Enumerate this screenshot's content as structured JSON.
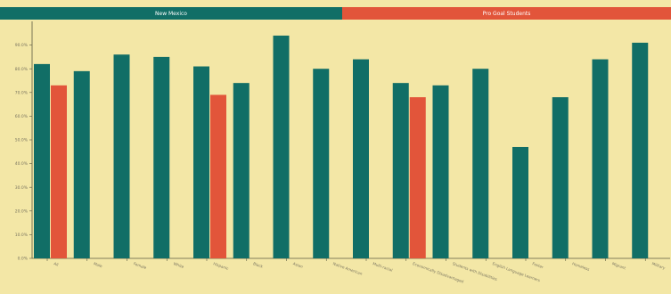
{
  "legend": {
    "left_label": "New Mexico",
    "right_label": "Pro Goal Students"
  },
  "colors": {
    "background": "#f3e7a6",
    "new_mexico": "#116e66",
    "pro_goal": "#e2553a",
    "axis": "#5a5a40",
    "tick_text": "#7a7560"
  },
  "chart_data": {
    "type": "bar",
    "title": "",
    "xlabel": "",
    "ylabel": "",
    "ylim": [
      0,
      100
    ],
    "y_ticks": [
      "0.0%",
      "10.0%",
      "20.0%",
      "30.0%",
      "40.0%",
      "50.0%",
      "60.0%",
      "70.0%",
      "80.0%",
      "90.0%"
    ],
    "grid": false,
    "legend_position": "top",
    "categories": [
      "All",
      "Male",
      "Female",
      "White",
      "Hispanic",
      "Black",
      "Asian",
      "Native American",
      "Multi-racial",
      "Economically Disadvantaged",
      "Students with Disabilities",
      "English Language Learners",
      "Foster",
      "Homeless",
      "Migrant",
      "Military"
    ],
    "series": [
      {
        "name": "New Mexico",
        "color": "#116e66",
        "values": [
          82,
          79,
          86,
          85,
          81,
          74,
          94,
          80,
          84,
          74,
          73,
          80,
          47,
          68,
          84,
          91
        ]
      },
      {
        "name": "Pro Goal Students",
        "color": "#e2553a",
        "values": [
          73,
          null,
          null,
          null,
          69,
          null,
          null,
          null,
          null,
          68,
          null,
          null,
          null,
          null,
          null,
          null
        ]
      }
    ]
  }
}
